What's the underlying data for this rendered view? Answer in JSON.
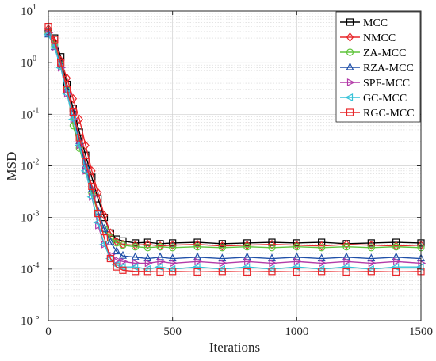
{
  "chart_data": {
    "type": "line",
    "title": "",
    "xlabel": "Iterations",
    "ylabel": "MSD",
    "xlim": [
      0,
      1500
    ],
    "ylim": [
      1e-05,
      10
    ],
    "yscale": "log",
    "grid": true,
    "legend_position": "top-right",
    "x_ticks": [
      {
        "value": 0,
        "label": "0"
      },
      {
        "value": 500,
        "label": "500"
      },
      {
        "value": 1000,
        "label": "1000"
      },
      {
        "value": 1500,
        "label": "1500"
      }
    ],
    "y_ticks": [
      {
        "value": 1e-05,
        "base": "10",
        "exp": "-5"
      },
      {
        "value": 0.0001,
        "base": "10",
        "exp": "-4"
      },
      {
        "value": 0.001,
        "base": "10",
        "exp": "-3"
      },
      {
        "value": 0.01,
        "base": "10",
        "exp": "-2"
      },
      {
        "value": 0.1,
        "base": "10",
        "exp": "-1"
      },
      {
        "value": 1,
        "base": "10",
        "exp": "0"
      },
      {
        "value": 10,
        "base": "10",
        "exp": "1"
      }
    ],
    "series": [
      {
        "name": "MCC",
        "color": "#000000",
        "marker": "square",
        "x": [
          0,
          25,
          50,
          75,
          100,
          125,
          150,
          175,
          200,
          225,
          250,
          275,
          300,
          350,
          400,
          450,
          500,
          600,
          700,
          800,
          900,
          1000,
          1100,
          1200,
          1300,
          1400,
          1500
        ],
        "y": [
          4,
          3,
          1.3,
          0.38,
          0.13,
          0.045,
          0.016,
          0.006,
          0.0023,
          0.001,
          0.0005,
          0.00038,
          0.00035,
          0.00032,
          0.00033,
          0.00031,
          0.00032,
          0.00033,
          0.00031,
          0.00032,
          0.00033,
          0.00032,
          0.00033,
          0.00031,
          0.00032,
          0.00033,
          0.00032
        ]
      },
      {
        "name": "NMCC",
        "color": "#e8262a",
        "marker": "diamond",
        "x": [
          0,
          25,
          50,
          75,
          100,
          125,
          150,
          175,
          200,
          225,
          250,
          275,
          300,
          350,
          400,
          450,
          500,
          600,
          700,
          800,
          900,
          1000,
          1100,
          1200,
          1300,
          1400,
          1500
        ],
        "y": [
          4.5,
          2.5,
          1.1,
          0.5,
          0.2,
          0.08,
          0.025,
          0.008,
          0.003,
          0.0011,
          0.0005,
          0.00034,
          0.0003,
          0.00029,
          0.0003,
          0.00028,
          0.00029,
          0.0003,
          0.00028,
          0.00029,
          0.0003,
          0.00029,
          0.00028,
          0.0003,
          0.00029,
          0.00028,
          0.00029
        ]
      },
      {
        "name": "ZA-MCC",
        "color": "#5ec43a",
        "marker": "circle",
        "x": [
          0,
          25,
          50,
          75,
          100,
          125,
          150,
          175,
          200,
          225,
          250,
          275,
          300,
          350,
          400,
          450,
          500,
          600,
          700,
          800,
          900,
          1000,
          1100,
          1200,
          1300,
          1400,
          1500
        ],
        "y": [
          3.8,
          2.2,
          0.9,
          0.3,
          0.06,
          0.022,
          0.008,
          0.003,
          0.0012,
          0.0006,
          0.0004,
          0.00032,
          0.00029,
          0.00027,
          0.00026,
          0.00027,
          0.00026,
          0.00027,
          0.00026,
          0.00027,
          0.00026,
          0.00027,
          0.00026,
          0.00027,
          0.00026,
          0.00027,
          0.00026
        ]
      },
      {
        "name": "RZA-MCC",
        "color": "#1f4fa8",
        "marker": "triangle-up",
        "x": [
          0,
          25,
          50,
          75,
          100,
          125,
          150,
          175,
          200,
          225,
          250,
          275,
          300,
          350,
          400,
          450,
          500,
          600,
          700,
          800,
          900,
          1000,
          1100,
          1200,
          1300,
          1400,
          1500
        ],
        "y": [
          3.5,
          2.0,
          0.9,
          0.3,
          0.11,
          0.03,
          0.01,
          0.0035,
          0.0013,
          0.0006,
          0.00033,
          0.00022,
          0.00018,
          0.00017,
          0.00016,
          0.00017,
          0.00016,
          0.00017,
          0.00016,
          0.00017,
          0.00016,
          0.00017,
          0.00016,
          0.00017,
          0.00016,
          0.00017,
          0.00016
        ]
      },
      {
        "name": "SPF-MCC",
        "color": "#b33aa8",
        "marker": "triangle-right",
        "x": [
          0,
          25,
          50,
          75,
          100,
          125,
          150,
          175,
          200,
          225,
          250,
          275,
          300,
          350,
          400,
          450,
          500,
          600,
          700,
          800,
          900,
          1000,
          1100,
          1200,
          1300,
          1400,
          1500
        ],
        "y": [
          3.8,
          2.0,
          0.8,
          0.25,
          0.08,
          0.025,
          0.008,
          0.0025,
          0.0007,
          0.0003,
          0.00019,
          0.00015,
          0.00014,
          0.00013,
          0.00013,
          0.00014,
          0.00013,
          0.00014,
          0.00013,
          0.00014,
          0.00013,
          0.00014,
          0.00013,
          0.00014,
          0.00013,
          0.00014,
          0.00013
        ]
      },
      {
        "name": "GC-MCC",
        "color": "#35c2d8",
        "marker": "triangle-left",
        "x": [
          0,
          25,
          50,
          75,
          100,
          125,
          150,
          175,
          200,
          225,
          250,
          275,
          300,
          350,
          400,
          450,
          500,
          600,
          700,
          800,
          900,
          1000,
          1100,
          1200,
          1300,
          1400,
          1500
        ],
        "y": [
          3.5,
          2.0,
          0.8,
          0.25,
          0.08,
          0.025,
          0.008,
          0.0025,
          0.0008,
          0.0003,
          0.00016,
          0.00012,
          0.00011,
          0.00011,
          0.0001,
          0.00011,
          0.0001,
          0.00011,
          0.0001,
          0.00011,
          0.0001,
          0.00011,
          0.0001,
          0.00011,
          0.0001,
          0.00011,
          0.00011
        ]
      },
      {
        "name": "RGC-MCC",
        "color": "#e8262a",
        "marker": "square",
        "x": [
          0,
          25,
          50,
          75,
          100,
          125,
          150,
          175,
          200,
          225,
          250,
          275,
          300,
          350,
          400,
          450,
          500,
          600,
          700,
          800,
          900,
          1000,
          1100,
          1200,
          1300,
          1400,
          1500
        ],
        "y": [
          5,
          2.8,
          1.0,
          0.3,
          0.11,
          0.035,
          0.012,
          0.004,
          0.0012,
          0.0004,
          0.00016,
          0.00011,
          9.5e-05,
          9e-05,
          9e-05,
          8.8e-05,
          9e-05,
          8.8e-05,
          9e-05,
          8.8e-05,
          9e-05,
          8.8e-05,
          9e-05,
          8.8e-05,
          9e-05,
          8.8e-05,
          9e-05
        ]
      }
    ]
  }
}
